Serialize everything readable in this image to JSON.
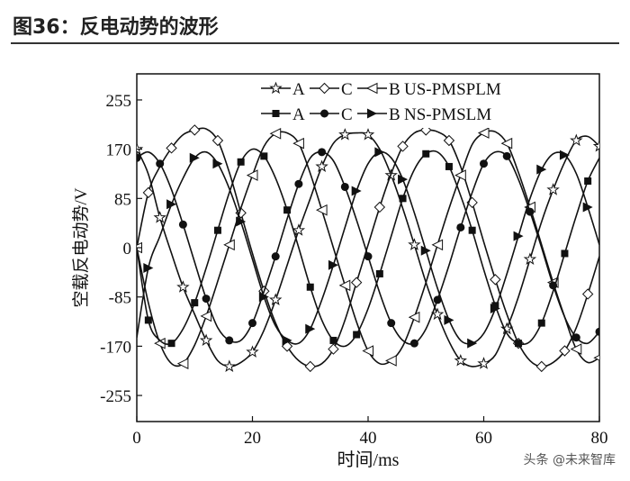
{
  "figure": {
    "title": "图36：反电动势的波形",
    "watermark": "头条 @未来智库"
  },
  "chart_data": {
    "type": "line",
    "xlabel": "时间/ms",
    "ylabel": "空载反电动势/V",
    "xlim": [
      0,
      80
    ],
    "ylim": [
      -300,
      300
    ],
    "xticks": [
      0,
      20,
      40,
      60,
      80
    ],
    "yticks": [
      255,
      170,
      85,
      0,
      -85,
      -170,
      -255
    ],
    "xtick_labels": [
      "0",
      "20",
      "40",
      "60",
      "80"
    ],
    "ytick_labels": [
      "255",
      "170",
      "85",
      "0",
      "-85",
      "-170",
      "-255"
    ],
    "grid": false,
    "legend_position": "top-right",
    "legend": [
      {
        "label_a": "A",
        "label_c": "C",
        "label_b": "B",
        "group": "US-PMSPLM"
      },
      {
        "label_a": "A",
        "label_c": "C",
        "label_b": "B",
        "group": "NS-PMSLM"
      }
    ],
    "x": [
      0,
      2,
      4,
      6,
      8,
      10,
      12,
      14,
      16,
      18,
      20,
      22,
      24,
      26,
      28,
      30,
      32,
      34,
      36,
      38,
      40,
      42,
      44,
      46,
      48,
      50,
      52,
      54,
      56,
      58,
      60,
      62,
      64,
      66,
      68,
      70,
      72,
      74,
      76,
      78,
      80
    ],
    "series": [
      {
        "name": "A",
        "group": "US-PMSPLM",
        "marker": "star",
        "values": [
          170,
          127,
          52,
          -10,
          -68,
          -115,
          -160,
          -195,
          -205,
          -198,
          -180,
          -142,
          -90,
          -30,
          30,
          85,
          140,
          180,
          195,
          198,
          195,
          170,
          125,
          68,
          5,
          -60,
          -115,
          -162,
          -195,
          -205,
          -200,
          -185,
          -140,
          -85,
          -20,
          45,
          100,
          148,
          185,
          192,
          175
        ]
      },
      {
        "name": "C",
        "group": "US-PMSPLM",
        "marker": "diamond",
        "values": [
          0,
          95,
          140,
          172,
          195,
          203,
          205,
          185,
          130,
          60,
          -10,
          -75,
          -130,
          -170,
          -195,
          -205,
          -200,
          -175,
          -125,
          -60,
          5,
          70,
          128,
          175,
          198,
          203,
          200,
          185,
          140,
          78,
          10,
          -55,
          -115,
          -165,
          -195,
          -205,
          -198,
          -178,
          -138,
          -80,
          -15
        ]
      },
      {
        "name": "B",
        "group": "US-PMSPLM",
        "marker": "tri-left",
        "values": [
          0,
          -95,
          -165,
          -200,
          -200,
          -168,
          -118,
          -58,
          5,
          68,
          125,
          175,
          197,
          198,
          180,
          128,
          65,
          0,
          -65,
          -128,
          -178,
          -200,
          -195,
          -170,
          -120,
          -60,
          5,
          68,
          125,
          178,
          198,
          200,
          180,
          130,
          70,
          5,
          -60,
          -120,
          -175,
          -198,
          -190
        ]
      },
      {
        "name": "A",
        "group": "NS-PMSLM",
        "marker": "square",
        "values": [
          0,
          -125,
          -160,
          -165,
          -140,
          -95,
          -35,
          30,
          95,
          148,
          170,
          158,
          120,
          65,
          0,
          -68,
          -125,
          -160,
          -170,
          -150,
          -105,
          -45,
          20,
          85,
          135,
          162,
          165,
          140,
          90,
          30,
          -38,
          -100,
          -148,
          -165,
          -162,
          -130,
          -75,
          -10,
          55,
          115,
          155
        ]
      },
      {
        "name": "C",
        "group": "NS-PMSLM",
        "marker": "circle",
        "values": [
          155,
          165,
          145,
          100,
          40,
          -25,
          -88,
          -138,
          -160,
          -160,
          -130,
          -75,
          -15,
          50,
          110,
          155,
          165,
          150,
          105,
          48,
          -15,
          -78,
          -130,
          -160,
          -165,
          -140,
          -90,
          -30,
          35,
          95,
          145,
          165,
          158,
          118,
          62,
          0,
          -65,
          -120,
          -155,
          -165,
          -145
        ]
      },
      {
        "name": "B",
        "group": "NS-PMSLM",
        "marker": "tri-right",
        "values": [
          -155,
          -35,
          20,
          75,
          120,
          155,
          165,
          145,
          102,
          45,
          -20,
          -85,
          -135,
          -160,
          -165,
          -140,
          -90,
          -30,
          35,
          98,
          145,
          165,
          155,
          118,
          60,
          -5,
          -70,
          -125,
          -160,
          -165,
          -148,
          -105,
          -45,
          20,
          85,
          135,
          162,
          160,
          128,
          70,
          5
        ]
      }
    ]
  }
}
